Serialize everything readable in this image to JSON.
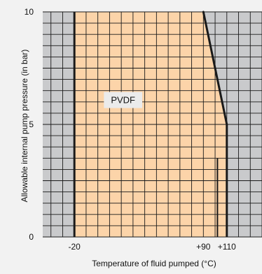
{
  "chart_data": {
    "type": "area",
    "title": "",
    "xlabel": "Temperature of fluid pumped (°C)",
    "ylabel": "Allowable internal pump pressure (in bar)",
    "xlim": [
      -47,
      140
    ],
    "ylim": [
      0,
      10
    ],
    "x_ticks": [
      {
        "value": -20,
        "label": "-20"
      },
      {
        "value": 90,
        "label": "+90"
      },
      {
        "value": 110,
        "label": "+110"
      }
    ],
    "y_ticks": [
      {
        "value": 0,
        "label": "0"
      },
      {
        "value": 5,
        "label": "5"
      },
      {
        "value": 10,
        "label": "10"
      }
    ],
    "grid": true,
    "region": {
      "label": "PVDF",
      "label_position": {
        "x": 21.5,
        "y": 6.1
      },
      "boundary": [
        {
          "x": -20,
          "y": 0
        },
        {
          "x": -20,
          "y": 10
        },
        {
          "x": 90,
          "y": 10
        },
        {
          "x": 110,
          "y": 5
        },
        {
          "x": 110,
          "y": 0
        }
      ]
    },
    "marker_line": {
      "x": 102,
      "y_from": 0,
      "y_to": 3.5
    },
    "colors": {
      "background": "#f2f2f2",
      "plot_outside": "#c9cacc",
      "region_fill": "#fcd4a9",
      "grid": "#1a1a1a",
      "boundary": "#1a1a1a",
      "label_box": "#ebebeb"
    }
  }
}
